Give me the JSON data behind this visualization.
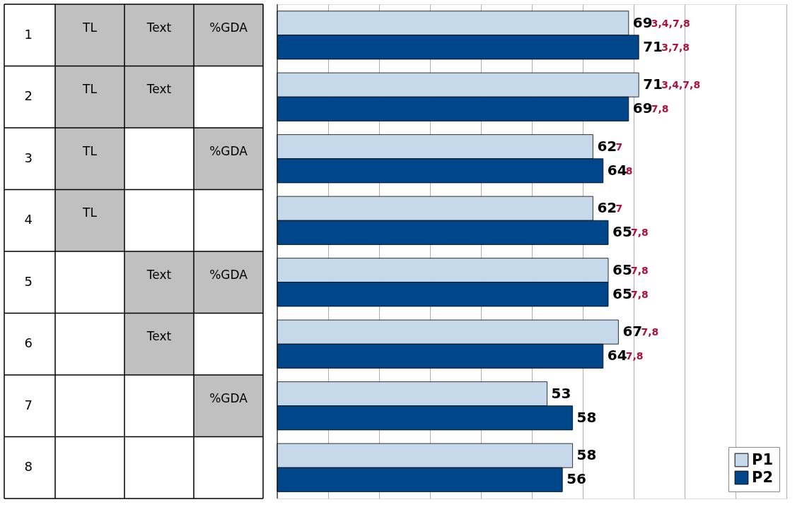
{
  "chart_data": [
    {
      "type": "other",
      "cell_labels": [
        [
          "TL",
          "Text",
          "%GDA"
        ],
        [
          "TL",
          "Text",
          null
        ],
        [
          "TL",
          null,
          "%GDA"
        ],
        [
          "TL",
          null,
          null
        ],
        [
          null,
          "Text",
          "%GDA"
        ],
        [
          null,
          "Text",
          null
        ],
        [
          null,
          null,
          "%GDA"
        ],
        [
          null,
          null,
          null
        ]
      ]
    },
    {
      "type": "bar",
      "orientation": "horizontal",
      "categories": [
        "1",
        "2",
        "3",
        "4",
        "5",
        "6",
        "7",
        "8"
      ],
      "series": [
        {
          "name": "P1",
          "color": "#c6d9ea",
          "values": [
            69,
            71,
            62,
            62,
            65,
            67,
            53,
            58
          ]
        },
        {
          "name": "P2",
          "color": "#00468b",
          "values": [
            71,
            69,
            64,
            65,
            65,
            64,
            58,
            56
          ]
        }
      ],
      "data_labels": true,
      "annotations": [
        {
          "text": "3,4,7,8",
          "x": 69,
          "y": "1"
        },
        {
          "text": "3,7,8",
          "x": 71,
          "y": "1"
        },
        {
          "text": "3,4,7,8",
          "x": 71,
          "y": "2"
        },
        {
          "text": "7,8",
          "x": 69,
          "y": "2"
        },
        {
          "text": "7",
          "x": 62,
          "y": "3"
        },
        {
          "text": "8",
          "x": 64,
          "y": "3"
        },
        {
          "text": "7",
          "x": 62,
          "y": "4"
        },
        {
          "text": "7,8",
          "x": 65,
          "y": "4"
        },
        {
          "text": "7,8",
          "x": 65,
          "y": "5"
        },
        {
          "text": "7,8",
          "x": 65,
          "y": "5"
        },
        {
          "text": "7,8",
          "x": 64,
          "y": "6"
        },
        {
          "text": "7,8",
          "x": 67,
          "y": "6"
        }
      ],
      "xlim": [
        0,
        100
      ],
      "xticks": [
        {
          "value": 0,
          "label": null
        },
        {
          "value": 10,
          "label": null
        },
        {
          "value": 20,
          "label": null
        },
        {
          "value": 30,
          "label": null
        },
        {
          "value": 40,
          "label": null
        },
        {
          "value": 50,
          "label": null
        },
        {
          "value": 60,
          "label": null
        },
        {
          "value": 70,
          "label": null
        },
        {
          "value": 80,
          "label": null
        },
        {
          "value": 90,
          "label": null
        },
        {
          "value": 100,
          "label": null
        }
      ],
      "grid": "x",
      "legend": "bottom right",
      "tick_labels": "y"
    }
  ]
}
